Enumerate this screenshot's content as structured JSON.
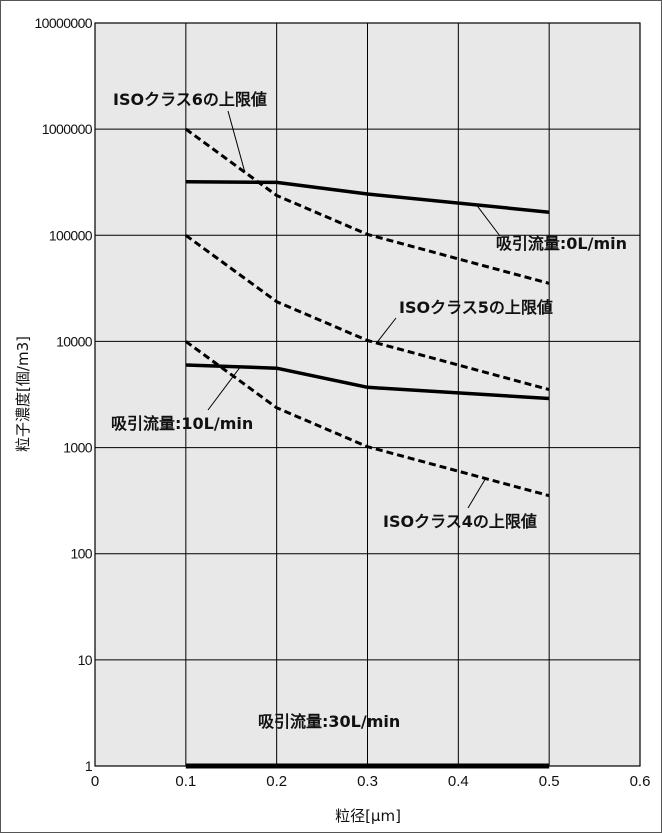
{
  "chart_data": {
    "type": "line",
    "title": "",
    "xlabel": "粒径[μm]",
    "ylabel": "粒子濃度[個/m3]",
    "xlim": [
      0,
      0.6
    ],
    "ylim": [
      1,
      10000000
    ],
    "yscale": "log",
    "grid": true,
    "x_ticks": [
      "0",
      "0.1",
      "0.2",
      "0.3",
      "0.4",
      "0.5",
      "0.6"
    ],
    "y_ticks": [
      "1",
      "10",
      "100",
      "1000",
      "10000",
      "100000",
      "1000000",
      "10000000"
    ],
    "series": [
      {
        "name": "ISOクラス6の上限値",
        "style": "dashed",
        "x": [
          0.1,
          0.2,
          0.3,
          0.5
        ],
        "y": [
          1000000,
          237000,
          102000,
          35200
        ]
      },
      {
        "name": "ISOクラス5の上限値",
        "style": "dashed",
        "x": [
          0.1,
          0.2,
          0.3,
          0.5
        ],
        "y": [
          100000,
          23700,
          10200,
          3520
        ]
      },
      {
        "name": "ISOクラス4の上限値",
        "style": "dashed",
        "x": [
          0.1,
          0.2,
          0.3,
          0.5
        ],
        "y": [
          10000,
          2370,
          1020,
          352
        ]
      },
      {
        "name": "吸引流量:0L/min",
        "style": "solid",
        "x": [
          0.1,
          0.2,
          0.3,
          0.5
        ],
        "y": [
          320000,
          315000,
          245000,
          165000
        ]
      },
      {
        "name": "吸引流量:10L/min",
        "style": "solid",
        "x": [
          0.1,
          0.2,
          0.3,
          0.5
        ],
        "y": [
          6000,
          5600,
          3700,
          2900
        ]
      },
      {
        "name": "吸引流量:30L/min",
        "style": "solid",
        "x": [
          0.1,
          0.2,
          0.3,
          0.5
        ],
        "y": [
          1,
          1,
          1,
          1
        ]
      }
    ]
  },
  "colors": {
    "plot_bg": "#e8e8e8",
    "grid": "#000000",
    "line": "#000000",
    "frame": "#555555"
  }
}
